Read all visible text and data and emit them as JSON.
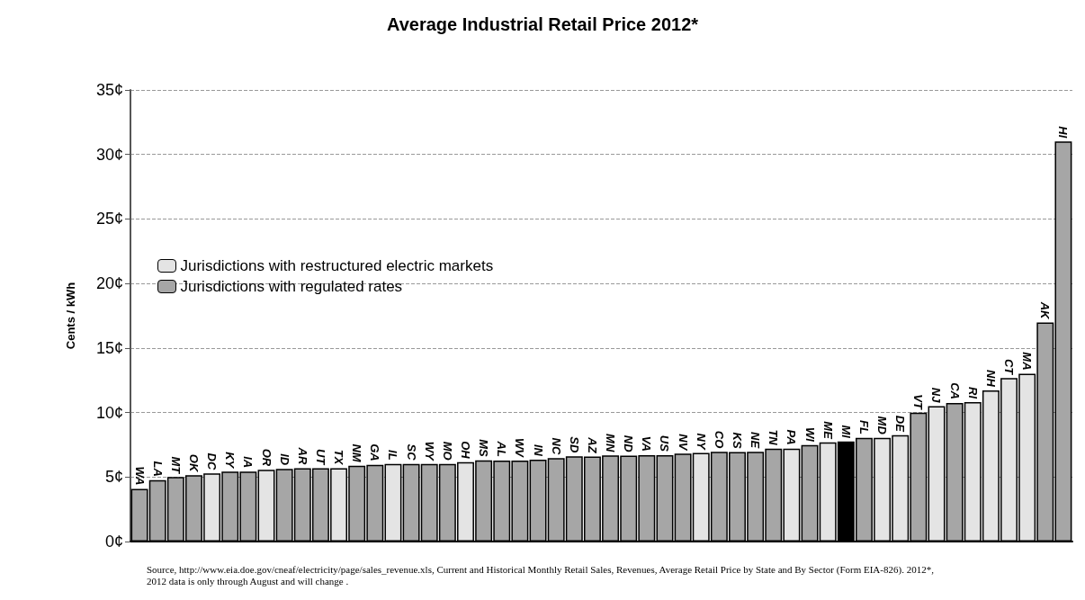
{
  "chart_data": {
    "type": "bar",
    "title": "Average Industrial Retail Price 2012*",
    "ylabel": "Cents / kWh",
    "categories": [
      "WA",
      "LA",
      "MT",
      "OK",
      "DC",
      "KY",
      "IA",
      "OR",
      "ID",
      "AR",
      "UT",
      "TX",
      "NM",
      "GA",
      "IL",
      "SC",
      "WY",
      "MO",
      "OH",
      "MS",
      "AL",
      "WV",
      "IN",
      "NC",
      "SD",
      "AZ",
      "MN",
      "ND",
      "VA",
      "US",
      "NV",
      "NY",
      "CO",
      "KS",
      "NE",
      "TN",
      "PA",
      "WI",
      "ME",
      "MI",
      "FL",
      "MD",
      "DE",
      "VT",
      "NJ",
      "CA",
      "RI",
      "NH",
      "CT",
      "MA",
      "AK",
      "HI"
    ],
    "series": [
      {
        "name": "Jurisdictions with restructured electric markets",
        "color": "#e4e4e4",
        "values": [
          null,
          null,
          null,
          null,
          5.28,
          null,
          null,
          5.56,
          null,
          null,
          null,
          5.69,
          null,
          null,
          6.02,
          null,
          null,
          null,
          6.16,
          null,
          null,
          null,
          null,
          null,
          null,
          null,
          null,
          null,
          null,
          null,
          null,
          6.86,
          null,
          null,
          null,
          null,
          7.2,
          null,
          7.68,
          null,
          null,
          8.03,
          8.24,
          null,
          10.5,
          null,
          10.8,
          11.72,
          12.67,
          13.0,
          null,
          null
        ]
      },
      {
        "name": "Jurisdictions with regulated rates",
        "color": "#a6a6a6",
        "values": [
          4.08,
          4.75,
          5.0,
          5.14,
          null,
          5.42,
          5.42,
          null,
          5.63,
          5.69,
          5.69,
          null,
          5.88,
          5.95,
          null,
          6.02,
          6.02,
          6.02,
          null,
          6.3,
          6.28,
          6.28,
          6.35,
          6.46,
          6.6,
          6.58,
          6.67,
          6.65,
          6.7,
          6.7,
          6.81,
          null,
          6.95,
          6.93,
          6.96,
          7.2,
          null,
          7.47,
          null,
          null,
          8.03,
          null,
          null,
          9.98,
          null,
          10.74,
          null,
          null,
          null,
          null,
          16.98,
          31.0
        ]
      },
      {
        "color": "#000000",
        "values": [
          null,
          null,
          null,
          null,
          null,
          null,
          null,
          null,
          null,
          null,
          null,
          null,
          null,
          null,
          null,
          null,
          null,
          null,
          null,
          null,
          null,
          null,
          null,
          null,
          null,
          null,
          null,
          null,
          null,
          null,
          null,
          null,
          null,
          null,
          null,
          null,
          null,
          null,
          null,
          7.75,
          null,
          null,
          null,
          null,
          null,
          null,
          null,
          null,
          null,
          null,
          null,
          null
        ]
      }
    ],
    "stacked": true,
    "ylim": [
      0,
      35
    ],
    "yticks": [
      {
        "value": 0,
        "label": "0¢"
      },
      {
        "value": 5,
        "label": "5¢"
      },
      {
        "value": 10,
        "label": "10¢"
      },
      {
        "value": 15,
        "label": "15¢"
      },
      {
        "value": 20,
        "label": "20¢"
      },
      {
        "value": 25,
        "label": "25¢"
      },
      {
        "value": 30,
        "label": "30¢"
      },
      {
        "value": 35,
        "label": "35¢"
      }
    ],
    "grid": "y",
    "legend": "left",
    "annotations": [
      "Source, http://www.eia.doe.gov/cneaf/electricity/page/sales_revenue.xls, Current and Historical Monthly Retail Sales, Revenues, Average Retail Price by State and By Sector (Form EIA-826). 2012*, 2012 data is only through August and will change ."
    ]
  }
}
